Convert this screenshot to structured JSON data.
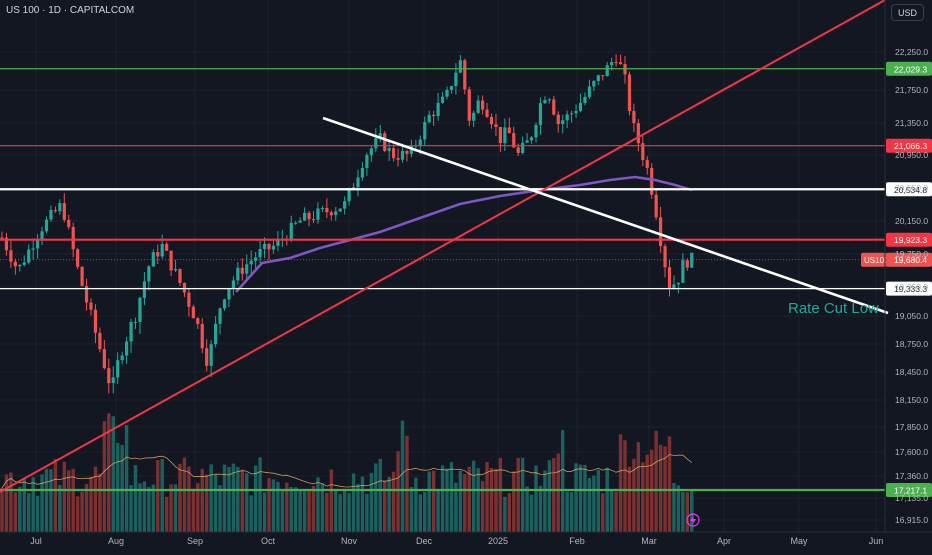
{
  "header": {
    "title": "US 100 · 1D · CAPITALCOM",
    "currency": "USD"
  },
  "chart_data": {
    "type": "candlestick",
    "ylim": [
      16915,
      22250
    ],
    "y_ticks": [
      "22,250.0",
      "21,750.0",
      "21,350.0",
      "20,950.0",
      "20,550.0",
      "20,150.0",
      "19,750.0",
      "19,350.0",
      "19,050.0",
      "18,750.0",
      "18,450.0",
      "18,150.0",
      "17,850.0",
      "17,600.0",
      "17,360.0",
      "17,135.0",
      "16,915.0"
    ],
    "x_ticks": [
      "Jul",
      "Aug",
      "Sep",
      "Oct",
      "Nov",
      "Dec",
      "2025",
      "Feb",
      "Mar",
      "Apr",
      "May",
      "Jun"
    ],
    "levels": [
      {
        "label": "22,029.3",
        "value": 22029.3,
        "color": "#4caf50",
        "style": "thin"
      },
      {
        "label": "21,066.3",
        "value": 21066.3,
        "color": "#f23645",
        "style": "thin"
      },
      {
        "label": "20,534.8",
        "value": 20534.8,
        "color": "#ffffff",
        "style": "thick"
      },
      {
        "label": "19,923.3",
        "value": 19923.3,
        "color": "#f23645",
        "style": "thick"
      },
      {
        "label": "19,333.3",
        "value": 19333.3,
        "color": "#ffffff",
        "style": "thin"
      },
      {
        "label": "17,217.1",
        "value": 17217.1,
        "color": "#4caf50",
        "style": "thick"
      }
    ],
    "current_price": {
      "symbol": "US100",
      "label": "19,680.4",
      "value": 19680.4
    },
    "annotation": "Rate Cut Low",
    "colors": {
      "up": "#26a69a",
      "down": "#ef5350",
      "ma": "#7e57c2",
      "bg": "#131722",
      "grid": "#1f2330"
    }
  }
}
